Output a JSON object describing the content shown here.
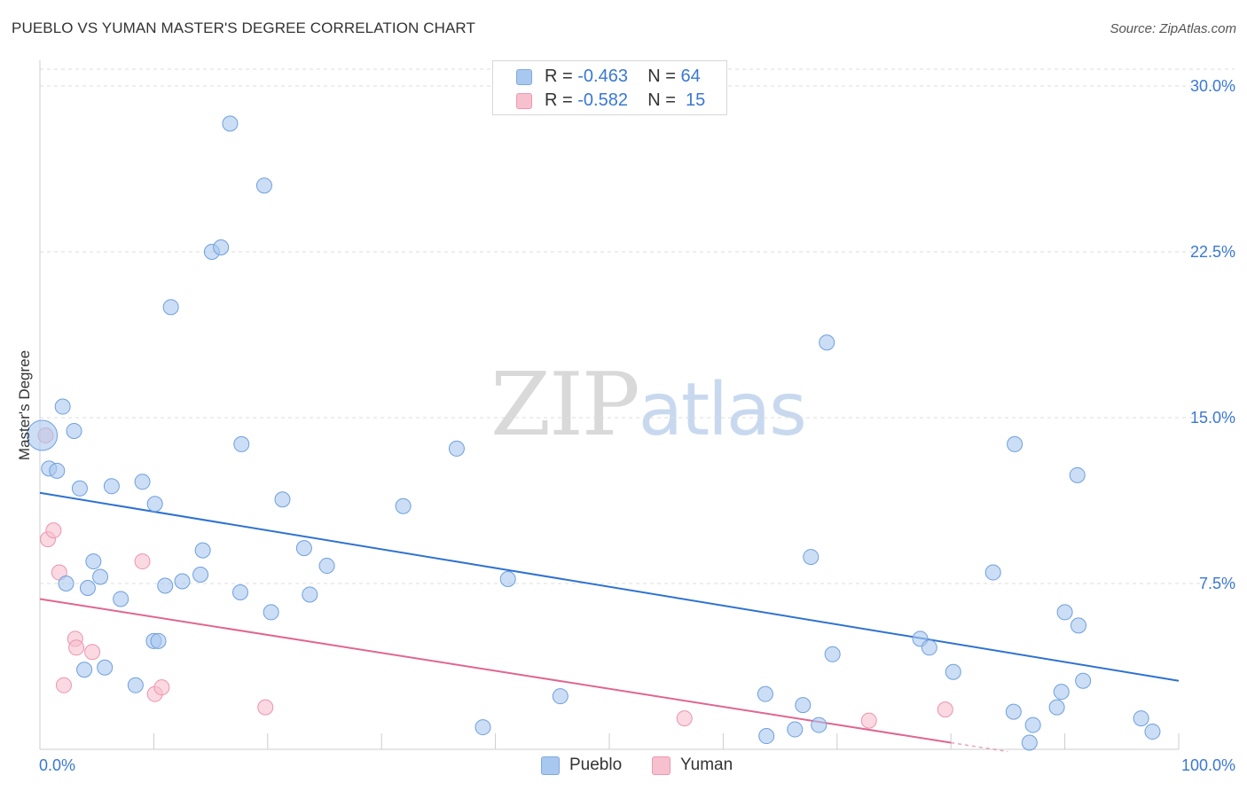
{
  "title": "PUEBLO VS YUMAN MASTER'S DEGREE CORRELATION CHART",
  "source": "Source: ZipAtlas.com",
  "watermark": {
    "part1": "ZIP",
    "part2": "atlas"
  },
  "legend": {
    "rows": [
      {
        "r_label": "R =",
        "r_value": "-0.463",
        "n_label": "N =",
        "n_value": "64",
        "color": "#a9c8ef",
        "border": "#7fa9e0"
      },
      {
        "r_label": "R =",
        "r_value": "-0.582",
        "n_label": "N =",
        "n_value": "15",
        "color": "#f7c0cf",
        "border": "#ee97b0"
      }
    ]
  },
  "series_legend": [
    {
      "name": "Pueblo",
      "color": "#a9c8ef",
      "border": "#7fa9e0"
    },
    {
      "name": "Yuman",
      "color": "#f7c0cf",
      "border": "#ee97b0"
    }
  ],
  "colors": {
    "pueblo_fill": "#a9c8ef",
    "pueblo_line": "#2f72d0",
    "yuman_fill": "#f7c0cf",
    "yuman_line": "#e0668f",
    "tick_label": "#3a78d4"
  },
  "chart_data": {
    "type": "scatter",
    "xlabel": "",
    "ylabel": "Master's Degree",
    "xlim": [
      0,
      100
    ],
    "ylim": [
      0,
      30
    ],
    "x_tick_labels": [
      {
        "value": 0,
        "label": "0.0%"
      },
      {
        "value": 100,
        "label": "100.0%"
      }
    ],
    "y_tick_labels": [
      {
        "value": 7.5,
        "label": "7.5%"
      },
      {
        "value": 15,
        "label": "15.0%"
      },
      {
        "value": 22.5,
        "label": "22.5%"
      },
      {
        "value": 30,
        "label": "30.0%"
      }
    ],
    "grid": true,
    "series": [
      {
        "name": "Pueblo",
        "R": -0.463,
        "N": 64,
        "trend": {
          "x": [
            0,
            100
          ],
          "y": [
            11.6,
            3.1
          ]
        },
        "points": [
          {
            "x": 0.2,
            "y": 14.2,
            "big": true
          },
          {
            "x": 0.8,
            "y": 12.7
          },
          {
            "x": 1.5,
            "y": 12.6
          },
          {
            "x": 2.0,
            "y": 15.5
          },
          {
            "x": 3.0,
            "y": 14.4
          },
          {
            "x": 3.5,
            "y": 11.8
          },
          {
            "x": 2.3,
            "y": 7.5
          },
          {
            "x": 4.2,
            "y": 7.3
          },
          {
            "x": 4.7,
            "y": 8.5
          },
          {
            "x": 5.3,
            "y": 7.8
          },
          {
            "x": 6.3,
            "y": 11.9
          },
          {
            "x": 7.1,
            "y": 6.8
          },
          {
            "x": 9.0,
            "y": 12.1
          },
          {
            "x": 10.1,
            "y": 11.1
          },
          {
            "x": 11.5,
            "y": 20.0
          },
          {
            "x": 11.0,
            "y": 7.4
          },
          {
            "x": 12.5,
            "y": 7.6
          },
          {
            "x": 14.3,
            "y": 9.0
          },
          {
            "x": 14.1,
            "y": 7.9
          },
          {
            "x": 15.1,
            "y": 22.5
          },
          {
            "x": 15.9,
            "y": 22.7
          },
          {
            "x": 16.7,
            "y": 28.3
          },
          {
            "x": 17.6,
            "y": 7.1
          },
          {
            "x": 17.7,
            "y": 13.8
          },
          {
            "x": 19.7,
            "y": 25.5
          },
          {
            "x": 20.3,
            "y": 6.2
          },
          {
            "x": 21.3,
            "y": 11.3
          },
          {
            "x": 23.2,
            "y": 9.1
          },
          {
            "x": 23.7,
            "y": 7.0
          },
          {
            "x": 25.2,
            "y": 8.3
          },
          {
            "x": 31.9,
            "y": 11.0
          },
          {
            "x": 36.6,
            "y": 13.6
          },
          {
            "x": 41.1,
            "y": 7.7
          },
          {
            "x": 3.9,
            "y": 3.6
          },
          {
            "x": 5.7,
            "y": 3.7
          },
          {
            "x": 10.0,
            "y": 4.9
          },
          {
            "x": 10.4,
            "y": 4.9
          },
          {
            "x": 8.4,
            "y": 2.9
          },
          {
            "x": 38.9,
            "y": 1.0
          },
          {
            "x": 45.7,
            "y": 2.4
          },
          {
            "x": 69.1,
            "y": 18.4
          },
          {
            "x": 85.6,
            "y": 13.8
          },
          {
            "x": 91.1,
            "y": 12.4
          },
          {
            "x": 67.7,
            "y": 8.7
          },
          {
            "x": 83.7,
            "y": 8.0
          },
          {
            "x": 90.0,
            "y": 6.2
          },
          {
            "x": 91.2,
            "y": 5.6
          },
          {
            "x": 69.6,
            "y": 4.3
          },
          {
            "x": 77.3,
            "y": 5.0
          },
          {
            "x": 78.1,
            "y": 4.6
          },
          {
            "x": 80.2,
            "y": 3.5
          },
          {
            "x": 63.7,
            "y": 2.5
          },
          {
            "x": 67.0,
            "y": 2.0
          },
          {
            "x": 66.3,
            "y": 0.9
          },
          {
            "x": 68.4,
            "y": 1.1
          },
          {
            "x": 63.8,
            "y": 0.6
          },
          {
            "x": 85.5,
            "y": 1.7
          },
          {
            "x": 87.2,
            "y": 1.1
          },
          {
            "x": 89.3,
            "y": 1.9
          },
          {
            "x": 89.7,
            "y": 2.6
          },
          {
            "x": 91.6,
            "y": 3.1
          },
          {
            "x": 96.7,
            "y": 1.4
          },
          {
            "x": 97.7,
            "y": 0.8
          },
          {
            "x": 86.9,
            "y": 0.3
          }
        ]
      },
      {
        "name": "Yuman",
        "R": -0.582,
        "N": 15,
        "trend": {
          "x": [
            0,
            80
          ],
          "y": [
            6.8,
            0.3
          ]
        },
        "trend_dashed": {
          "x": [
            80,
            85
          ],
          "y": [
            0.3,
            -0.1
          ]
        },
        "points": [
          {
            "x": 0.5,
            "y": 14.2
          },
          {
            "x": 0.7,
            "y": 9.5
          },
          {
            "x": 1.2,
            "y": 9.9
          },
          {
            "x": 1.7,
            "y": 8.0
          },
          {
            "x": 9.0,
            "y": 8.5
          },
          {
            "x": 3.1,
            "y": 5.0
          },
          {
            "x": 3.2,
            "y": 4.6
          },
          {
            "x": 4.6,
            "y": 4.4
          },
          {
            "x": 2.1,
            "y": 2.9
          },
          {
            "x": 10.1,
            "y": 2.5
          },
          {
            "x": 10.7,
            "y": 2.8
          },
          {
            "x": 19.8,
            "y": 1.9
          },
          {
            "x": 56.6,
            "y": 1.4
          },
          {
            "x": 72.8,
            "y": 1.3
          },
          {
            "x": 79.5,
            "y": 1.8
          }
        ]
      }
    ]
  }
}
